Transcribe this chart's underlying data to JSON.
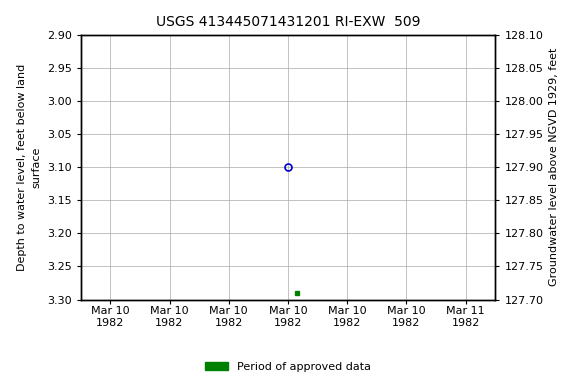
{
  "title": "USGS 413445071431201 RI-EXW  509",
  "left_ylabel_lines": [
    "Depth to water level, feet below land",
    "surface"
  ],
  "right_ylabel": "Groundwater level above NGVD 1929, feet",
  "ylim_left": [
    2.9,
    3.3
  ],
  "ylim_right": [
    127.7,
    128.1
  ],
  "left_yticks": [
    2.9,
    2.95,
    3.0,
    3.05,
    3.1,
    3.15,
    3.2,
    3.25,
    3.3
  ],
  "right_yticks": [
    127.7,
    127.75,
    127.8,
    127.85,
    127.9,
    127.95,
    128.0,
    128.05,
    128.1
  ],
  "xtick_labels": [
    "Mar 10\n1982",
    "Mar 10\n1982",
    "Mar 10\n1982",
    "Mar 10\n1982",
    "Mar 10\n1982",
    "Mar 10\n1982",
    "Mar 11\n1982"
  ],
  "xtick_positions": [
    0,
    1,
    2,
    3,
    4,
    5,
    6
  ],
  "blue_point_x": 3.0,
  "blue_point_y": 3.1,
  "green_point_x": 3.15,
  "green_point_y": 3.29,
  "blue_color": "#0000cc",
  "green_color": "#008000",
  "legend_label": "Period of approved data",
  "background_color": "#ffffff",
  "grid_color": "#aaaaaa",
  "title_fontsize": 10,
  "label_fontsize": 8,
  "tick_fontsize": 8
}
